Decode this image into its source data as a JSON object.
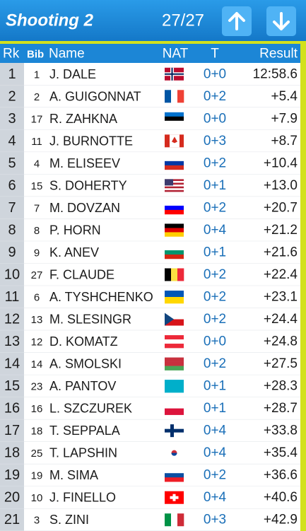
{
  "header": {
    "title": "Shooting 2",
    "counter": "27/27"
  },
  "table": {
    "columns": [
      "Rk",
      "Bib",
      "Name",
      "NAT",
      "T",
      "Result"
    ],
    "rows": [
      [
        1,
        1,
        "J. DALE",
        "0+0",
        "12:58.6"
      ],
      [
        2,
        2,
        "A. GUIGONNAT",
        "0+2",
        "+5.4"
      ],
      [
        3,
        17,
        "R. ZAHKNA",
        "0+0",
        "+7.9"
      ],
      [
        4,
        11,
        "J. BURNOTTE",
        "0+3",
        "+8.7"
      ],
      [
        5,
        4,
        "M. ELISEEV",
        "0+2",
        "+10.4"
      ],
      [
        6,
        15,
        "S. DOHERTY",
        "0+1",
        "+13.0"
      ],
      [
        7,
        7,
        "M. DOVZAN",
        "0+2",
        "+20.7"
      ],
      [
        8,
        8,
        "P. HORN",
        "0+4",
        "+21.2"
      ],
      [
        9,
        9,
        "K. ANEV",
        "0+1",
        "+21.6"
      ],
      [
        10,
        27,
        "F. CLAUDE",
        "0+2",
        "+22.4"
      ],
      [
        11,
        6,
        "A. TYSHCHENKO",
        "0+2",
        "+23.1"
      ],
      [
        12,
        13,
        "M. SLESINGR",
        "0+2",
        "+24.4"
      ],
      [
        13,
        12,
        "D. KOMATZ",
        "0+0",
        "+24.8"
      ],
      [
        14,
        14,
        "A. SMOLSKI",
        "0+2",
        "+27.5"
      ],
      [
        15,
        23,
        "A. PANTOV",
        "0+1",
        "+28.3"
      ],
      [
        16,
        16,
        "L. SZCZUREK",
        "0+1",
        "+28.7"
      ],
      [
        17,
        18,
        "T. SEPPALA",
        "0+4",
        "+33.8"
      ],
      [
        18,
        25,
        "T. LAPSHIN",
        "0+4",
        "+35.4"
      ],
      [
        19,
        19,
        "M. SIMA",
        "0+2",
        "+36.6"
      ],
      [
        20,
        10,
        "J. FINELLO",
        "0+4",
        "+40.6"
      ],
      [
        21,
        3,
        "S. ZINI",
        "0+3",
        "+42.9"
      ]
    ]
  }
}
